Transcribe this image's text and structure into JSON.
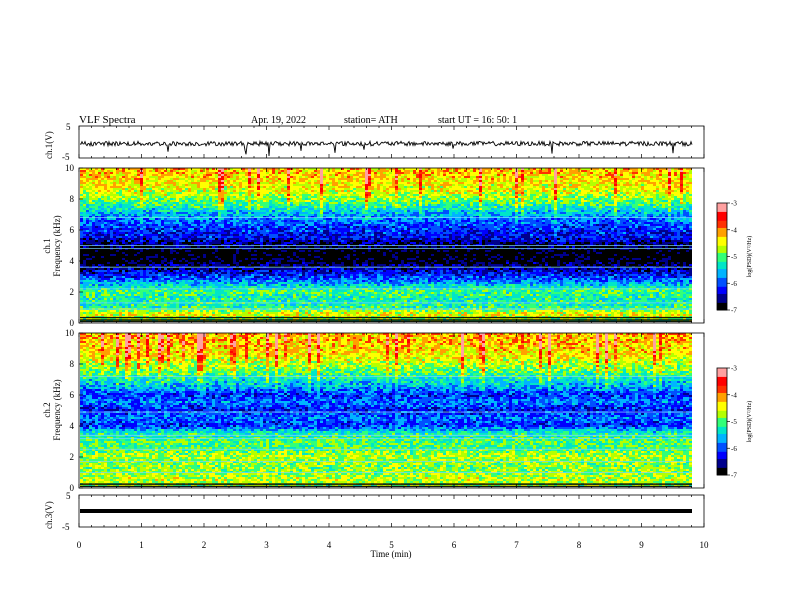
{
  "header": {
    "title": "VLF  Spectra",
    "date": "Apr. 19, 2022",
    "station": "station= ATH",
    "start": "start  UT  =    16: 50: 1"
  },
  "colors": {
    "spectrogram": [
      "#000000",
      "#00008c",
      "#0000ff",
      "#0050ff",
      "#00b4ff",
      "#00e6c8",
      "#32ff78",
      "#b4ff00",
      "#ffff00",
      "#ffa000",
      "#ff3000",
      "#ff0000",
      "#ffa0a0",
      "#ffffff"
    ],
    "trace": "#000000"
  },
  "chart_data": [
    {
      "type": "line",
      "name": "ch1-waveform",
      "ylabel": "ch.1(V)",
      "ylim": [
        -5,
        5
      ],
      "yticks": [
        "5",
        "-5"
      ],
      "xlim": [
        0,
        10
      ],
      "baseline": -0.5,
      "note_visible": "noisy waveform centred near -0.5 V with spikes down to about -4 V"
    },
    {
      "type": "heatmap",
      "name": "ch1-spectrogram",
      "ylabel": "ch.1\nFrequency  (kHz)",
      "ylabel_line1": "ch.1",
      "ylabel_line2": "Frequency  (kHz)",
      "ylim": [
        0,
        10
      ],
      "yticks": [
        "0",
        "2",
        "4",
        "6",
        "8",
        "10"
      ],
      "xlim": [
        0,
        9.8
      ],
      "colorbar": {
        "label": "log(PSD)(V²/Hz)",
        "range": [
          -7,
          -3
        ],
        "ticks": [
          "-3",
          "-4",
          "-5",
          "-6",
          "-7"
        ]
      },
      "profile": [
        {
          "f": 0.0,
          "level": 0.5
        },
        {
          "f": 0.5,
          "level": 0.65
        },
        {
          "f": 1.0,
          "level": 0.45
        },
        {
          "f": 1.5,
          "level": 0.45
        },
        {
          "f": 2.0,
          "level": 0.5
        },
        {
          "f": 2.5,
          "level": 0.35
        },
        {
          "f": 3.0,
          "level": 0.22
        },
        {
          "f": 3.5,
          "level": 0.12
        },
        {
          "f": 4.0,
          "level": 0.02
        },
        {
          "f": 4.5,
          "level": 0.0
        },
        {
          "f": 5.0,
          "level": 0.08
        },
        {
          "f": 5.5,
          "level": 0.2
        },
        {
          "f": 6.0,
          "level": 0.22
        },
        {
          "f": 6.5,
          "level": 0.28
        },
        {
          "f": 7.0,
          "level": 0.35
        },
        {
          "f": 7.5,
          "level": 0.45
        },
        {
          "f": 8.0,
          "level": 0.55
        },
        {
          "f": 8.5,
          "level": 0.62
        },
        {
          "f": 9.0,
          "level": 0.65
        },
        {
          "f": 9.5,
          "level": 0.68
        },
        {
          "f": 10.0,
          "level": 0.7
        }
      ],
      "lines_khz": [
        0.1,
        0.2,
        0.35,
        0.9,
        1.3,
        2.2,
        3.6,
        4.8,
        5.0,
        6.8
      ]
    },
    {
      "type": "heatmap",
      "name": "ch2-spectrogram",
      "ylabel": "ch.2\nFrequency  (kHz)",
      "ylabel_line1": "ch.2",
      "ylabel_line2": "Frequency  (kHz)",
      "ylim": [
        0,
        10
      ],
      "yticks": [
        "0",
        "2",
        "4",
        "6",
        "8",
        "10"
      ],
      "xlim": [
        0,
        9.8
      ],
      "colorbar": {
        "label": "log(PSD)(V²/Hz)",
        "range": [
          -7,
          -3
        ],
        "ticks": [
          "-3",
          "-4",
          "-5",
          "-6",
          "-7"
        ]
      },
      "profile": [
        {
          "f": 0.0,
          "level": 0.55
        },
        {
          "f": 0.5,
          "level": 0.6
        },
        {
          "f": 1.0,
          "level": 0.55
        },
        {
          "f": 1.5,
          "level": 0.55
        },
        {
          "f": 2.0,
          "level": 0.58
        },
        {
          "f": 2.5,
          "level": 0.5
        },
        {
          "f": 3.0,
          "level": 0.5
        },
        {
          "f": 3.5,
          "level": 0.45
        },
        {
          "f": 4.0,
          "level": 0.22
        },
        {
          "f": 4.5,
          "level": 0.3
        },
        {
          "f": 5.0,
          "level": 0.2
        },
        {
          "f": 5.5,
          "level": 0.3
        },
        {
          "f": 6.0,
          "level": 0.22
        },
        {
          "f": 6.5,
          "level": 0.35
        },
        {
          "f": 7.0,
          "level": 0.42
        },
        {
          "f": 7.5,
          "level": 0.52
        },
        {
          "f": 8.0,
          "level": 0.58
        },
        {
          "f": 8.5,
          "level": 0.65
        },
        {
          "f": 9.0,
          "level": 0.68
        },
        {
          "f": 9.5,
          "level": 0.7
        },
        {
          "f": 10.0,
          "level": 0.72
        }
      ],
      "lines_khz": [
        0.1,
        0.25,
        1.0,
        1.7,
        2.5,
        3.2,
        3.4,
        4.9,
        7.2
      ]
    },
    {
      "type": "line",
      "name": "ch3-waveform",
      "ylabel": "ch.3(V)",
      "ylim": [
        -5,
        5
      ],
      "yticks": [
        "5",
        "-5"
      ],
      "xlim": [
        0,
        10
      ],
      "baseline": -1.5,
      "note_visible": "flat thick trace near -1.5 V"
    }
  ],
  "xaxis": {
    "label": "Time  (min)",
    "ticks": [
      "0",
      "1",
      "2",
      "3",
      "4",
      "5",
      "6",
      "7",
      "8",
      "9",
      "10"
    ]
  }
}
